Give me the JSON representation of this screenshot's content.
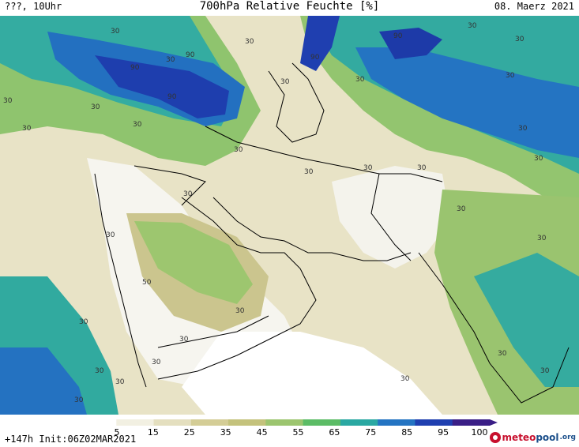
{
  "header": {
    "left": "???, 10Uhr",
    "title": "700hPa Relative Feuchte [%]",
    "date": "08. Maerz 2021"
  },
  "footer": {
    "run": "+147h Init:06Z02MAR2021",
    "logo_meteo": "meteo",
    "logo_pool": "pool",
    "logo_org": ".org"
  },
  "colorbar": {
    "labels": [
      "5",
      "15",
      "25",
      "35",
      "45",
      "55",
      "65",
      "75",
      "85",
      "95",
      "100"
    ],
    "colors": [
      "#ffffff",
      "#f2f0e2",
      "#e4dfbf",
      "#d4cd96",
      "#c4c27c",
      "#9cc56f",
      "#5cbc66",
      "#2aa8a2",
      "#2474c2",
      "#1f3fb0",
      "#3a1e86"
    ]
  },
  "map": {
    "contour_label_30": "30",
    "contour_label_50": "50",
    "contour_label_90": "90",
    "colors": {
      "white": "#ffffff",
      "pale": "#f1efe1",
      "beige": "#e2dcbd",
      "olive": "#cfc995",
      "green": "#9bc56f",
      "teal": "#2fa9a0",
      "blue": "#2272c1",
      "darkblue": "#1d3aa8",
      "border": "#000000"
    }
  }
}
